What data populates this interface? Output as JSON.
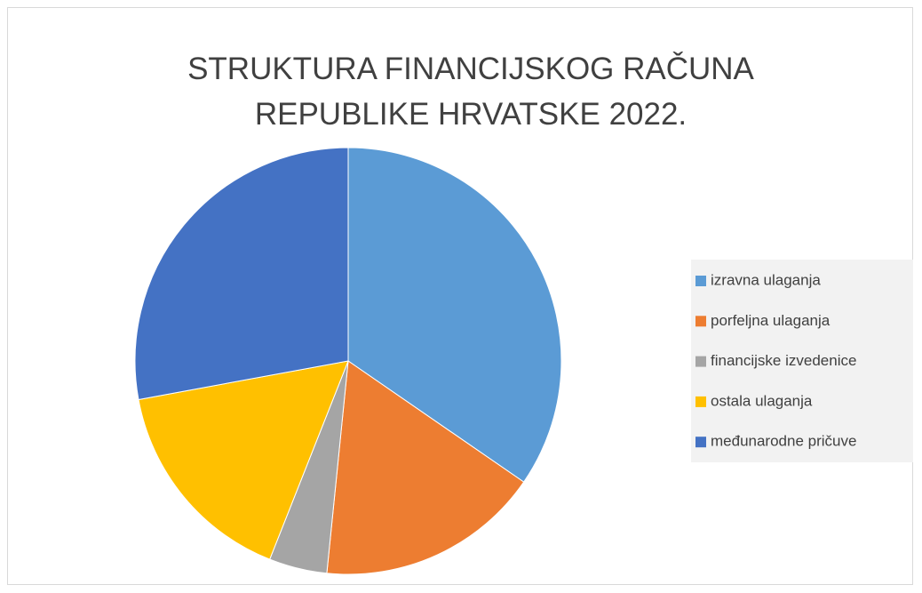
{
  "chart_data": {
    "type": "pie",
    "title": "STRUKTURA FINANCIJSKOG RAČUNA REPUBLIKE HRVATSKE 2022.",
    "categories": [
      "izravna ulaganja",
      "porfeljna ulaganja",
      "financijske izvedenice",
      "ostala ulaganja",
      "međunarodne pričuve"
    ],
    "values": [
      34.6,
      17,
      4.4,
      16.1,
      27.9
    ],
    "colors": [
      "#5b9bd5",
      "#ed7d31",
      "#a5a5a5",
      "#ffc000",
      "#4472c4"
    ],
    "legend": "right"
  }
}
